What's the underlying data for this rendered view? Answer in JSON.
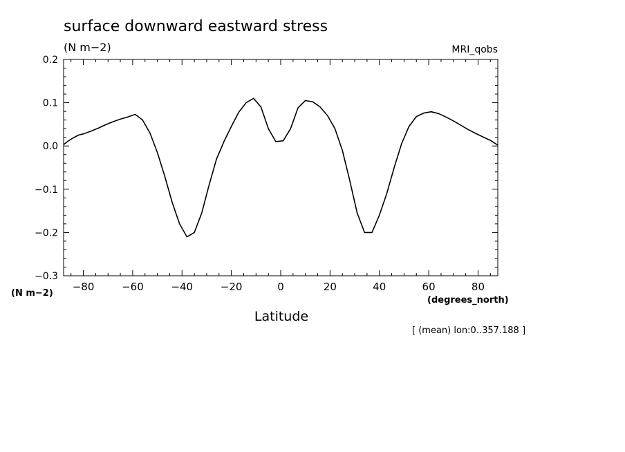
{
  "chart_data": {
    "type": "line",
    "title": "surface downward eastward stress",
    "units_label": "(N m−2)",
    "model_label": "MRI_qobs",
    "y_units_label": "(N m−2)",
    "x_units_label": "(degrees_north)",
    "xlabel": "Latitude",
    "footnote": "[ (mean) lon:0..357.188 ]",
    "xlim": [
      -88,
      88
    ],
    "ylim": [
      -0.3,
      0.2
    ],
    "x_ticks": [
      -80,
      -60,
      -40,
      -20,
      0,
      20,
      40,
      60,
      80
    ],
    "x_tick_labels": [
      "−80",
      "−60",
      "−40",
      "−20",
      "0",
      "20",
      "40",
      "60",
      "80"
    ],
    "y_ticks": [
      -0.3,
      -0.2,
      -0.1,
      0.0,
      0.1,
      0.2
    ],
    "y_tick_labels": [
      "−0.3",
      "−0.2",
      "−0.1",
      "0.0",
      "0.1",
      "0.2"
    ],
    "grid": false,
    "line_color": "#000000",
    "x": [
      -88,
      -86,
      -84,
      -82,
      -80,
      -77,
      -74,
      -71,
      -68,
      -65,
      -62,
      -59,
      -56,
      -53,
      -50,
      -47,
      -44,
      -41,
      -38,
      -35,
      -32,
      -29,
      -26,
      -23,
      -20,
      -17,
      -14,
      -11,
      -8,
      -5,
      -2,
      1,
      4,
      7,
      10,
      13,
      16,
      19,
      22,
      25,
      28,
      31,
      34,
      37,
      40,
      43,
      46,
      49,
      52,
      55,
      58,
      61,
      64,
      67,
      70,
      73,
      76,
      79,
      82,
      85,
      88
    ],
    "y": [
      0.003,
      0.012,
      0.019,
      0.025,
      0.028,
      0.034,
      0.041,
      0.049,
      0.056,
      0.062,
      0.067,
      0.073,
      0.06,
      0.03,
      -0.015,
      -0.07,
      -0.13,
      -0.18,
      -0.21,
      -0.2,
      -0.155,
      -0.09,
      -0.03,
      0.01,
      0.045,
      0.078,
      0.1,
      0.11,
      0.09,
      0.04,
      0.01,
      0.012,
      0.04,
      0.088,
      0.105,
      0.102,
      0.09,
      0.07,
      0.04,
      -0.01,
      -0.08,
      -0.155,
      -0.2,
      -0.2,
      -0.16,
      -0.11,
      -0.05,
      0.005,
      0.045,
      0.068,
      0.076,
      0.079,
      0.075,
      0.067,
      0.058,
      0.048,
      0.038,
      0.029,
      0.021,
      0.013,
      0.002
    ]
  }
}
